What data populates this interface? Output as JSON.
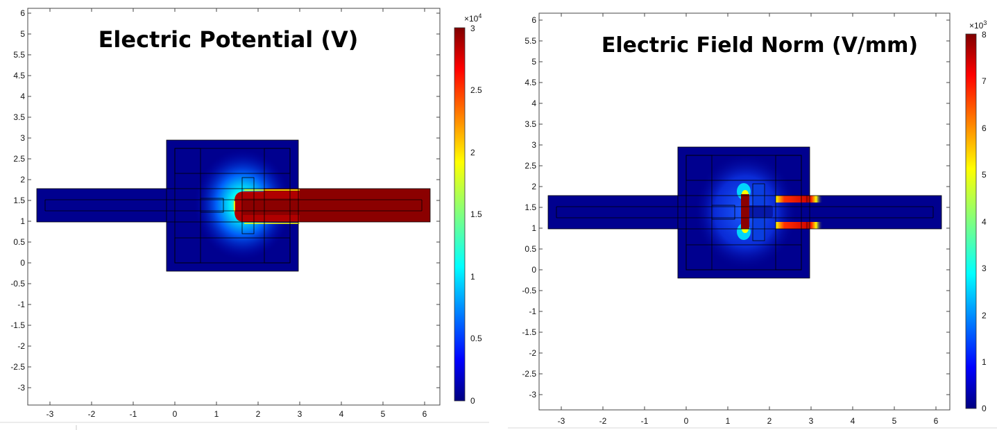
{
  "panels": [
    {
      "id": "potential",
      "title": "Electric Potential (V)",
      "x_ticks": [
        "-3",
        "-2",
        "-1",
        "0",
        "1",
        "2",
        "3",
        "4",
        "5",
        "6"
      ],
      "y_ticks": [
        "6",
        "5.5",
        "5",
        "4.5",
        "4",
        "3.5",
        "3",
        "2.5",
        "2",
        "1.5",
        "1",
        "0.5",
        "0",
        "-0.5",
        "-1",
        "-1.5",
        "-2",
        "-2.5",
        "-3"
      ],
      "colorbar": {
        "exponent_label": "×10",
        "exponent": "4",
        "ticks": [
          "3",
          "2.5",
          "2",
          "1.5",
          "1",
          "0.5",
          "0"
        ],
        "range": [
          0,
          3
        ]
      }
    },
    {
      "id": "field",
      "title": "Electric Field Norm (V/mm)",
      "x_ticks": [
        "-3",
        "-2",
        "-1",
        "0",
        "1",
        "2",
        "3",
        "4",
        "5",
        "6"
      ],
      "y_ticks": [
        "6",
        "5.5",
        "5",
        "4.5",
        "4",
        "3.5",
        "3",
        "2.5",
        "2",
        "1.5",
        "1",
        "0.5",
        "0",
        "-0.5",
        "-1",
        "-1.5",
        "-2",
        "-2.5",
        "-3"
      ],
      "colorbar": {
        "exponent_label": "×10",
        "exponent": "3",
        "ticks": [
          "8",
          "7",
          "6",
          "5",
          "4",
          "3",
          "2",
          "1",
          "0"
        ],
        "range": [
          0,
          8
        ]
      }
    }
  ],
  "colors": {
    "deep_blue": "#00008f",
    "dark_red": "#8b0000",
    "mid_blue": "#0a2bd6"
  }
}
